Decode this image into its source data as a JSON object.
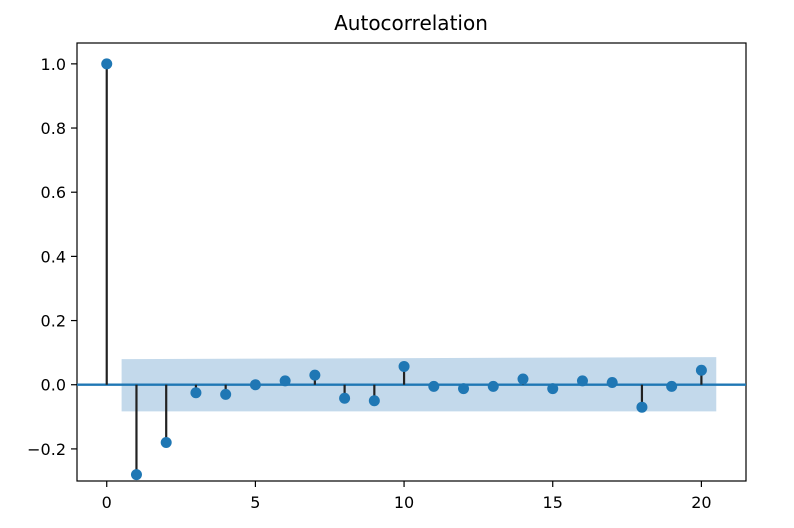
{
  "chart_data": {
    "type": "scatter",
    "title": "Autocorrelation",
    "xlabel": "",
    "ylabel": "",
    "xlim": [
      -1,
      21.5
    ],
    "ylim": [
      -0.3,
      1.065
    ],
    "x_ticks": [
      0,
      5,
      10,
      15,
      20
    ],
    "x_tick_labels": [
      "0",
      "5",
      "10",
      "15",
      "20"
    ],
    "y_ticks": [
      -0.2,
      0.0,
      0.2,
      0.4,
      0.6,
      0.8,
      1.0
    ],
    "y_tick_labels": [
      "−0.2",
      "0.0",
      "0.2",
      "0.4",
      "0.6",
      "0.8",
      "1.0"
    ],
    "lags": [
      0,
      1,
      2,
      3,
      4,
      5,
      6,
      7,
      8,
      9,
      10,
      11,
      12,
      13,
      14,
      15,
      16,
      17,
      18,
      19,
      20
    ],
    "values": [
      1.0,
      -0.28,
      -0.18,
      -0.025,
      -0.03,
      0.0,
      0.012,
      0.03,
      -0.042,
      -0.05,
      0.057,
      -0.005,
      -0.012,
      -0.005,
      0.018,
      -0.012,
      0.012,
      0.007,
      -0.07,
      -0.005,
      0.045
    ],
    "confidence_band": {
      "start_lag": 0.5,
      "end_lag": 20.5,
      "upper": 0.083,
      "lower": -0.083
    },
    "grid": false,
    "legend": "none",
    "colors": {
      "point": "#1f77b4",
      "stem": "#222222",
      "baseline": "#1f77b4",
      "band": "#b8d2e8",
      "axis": "#000000"
    }
  }
}
